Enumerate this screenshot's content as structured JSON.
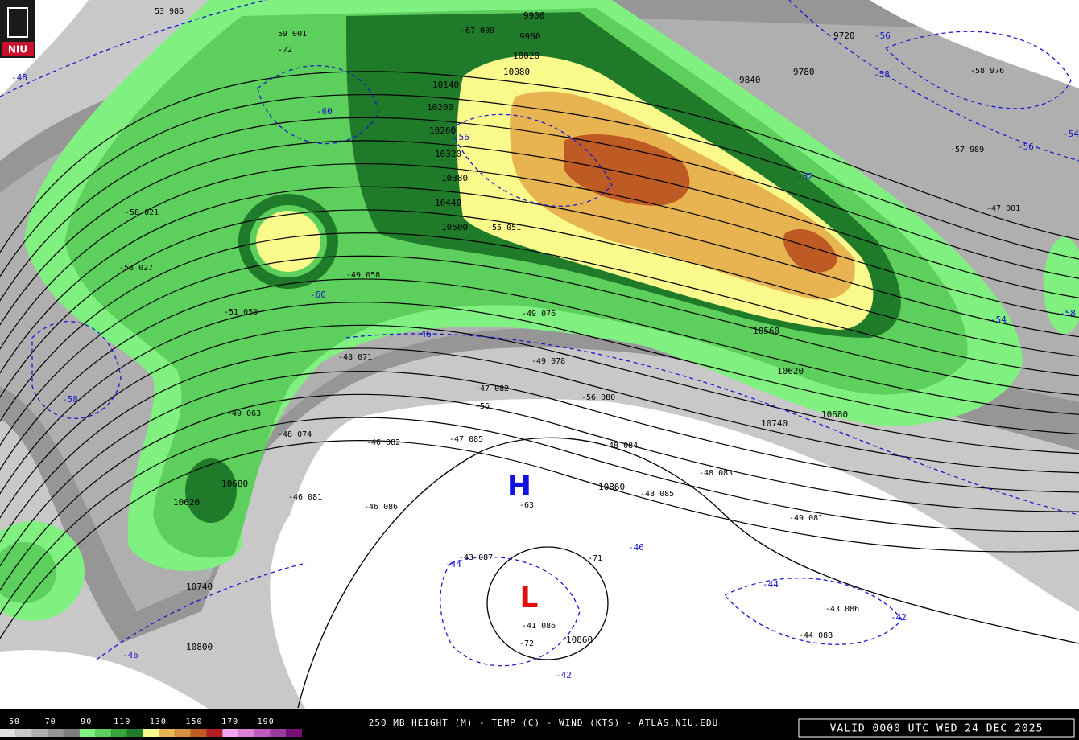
{
  "logo": "NIU",
  "title": "250 MB HEIGHT (M) - TEMP (C) - WIND (KTS) - ATLAS.NIU.EDU",
  "valid": "VALID 0000 UTC WED 24 DEC 2025",
  "legend": {
    "labels": [
      50,
      70,
      90,
      110,
      130,
      150,
      170,
      190
    ],
    "colors": [
      "#e1e1e1",
      "#c8c8c8",
      "#afafaf",
      "#969696",
      "#7d7d7d",
      "#80f080",
      "#5ccf5c",
      "#3aa53a",
      "#1f7a2a",
      "#fafa8c",
      "#e8b452",
      "#d6903e",
      "#be5a24",
      "#b41e1e",
      "#f3a6ef",
      "#dc80d6",
      "#be5cbe",
      "#9a3a9a",
      "#780f78"
    ]
  },
  "centers": {
    "high": "H",
    "low": "L"
  },
  "height_labels": [
    9900,
    9960,
    10020,
    10080,
    10140,
    10200,
    10260,
    10320,
    10380,
    10440,
    10500,
    9720,
    9780,
    9840,
    10560,
    10620,
    10680,
    10740,
    10860,
    10800,
    10860,
    10740,
    10680,
    10620
  ],
  "isotherm_labels": [
    "-48",
    "-58",
    "-56",
    "-60",
    "-56",
    "-58",
    "-54",
    "-54",
    "-58",
    "-46",
    "-46",
    "-44",
    "-46",
    "-44",
    "-42",
    "-42",
    "-60",
    "-52",
    "-56"
  ],
  "station_labels": [
    "53 986",
    "59 001",
    "-67 009",
    "-72",
    "-47 085",
    "-46 082",
    "-47 082",
    "-56",
    "-48 084",
    "-48 085",
    "-48 083",
    "-49 081",
    "-43 087",
    "-41 086",
    "-72",
    "-43 086",
    "-44 088",
    "-48 074",
    "-49 063",
    "-51 050",
    "-49 058",
    "-48 071",
    "-49 078",
    "-49 076",
    "-58 027",
    "-58 021",
    "-47 001",
    "-57 989",
    "-58 976",
    "-55 051",
    "-56 080",
    "-46 081",
    "-46 086",
    "-63",
    "-71"
  ]
}
